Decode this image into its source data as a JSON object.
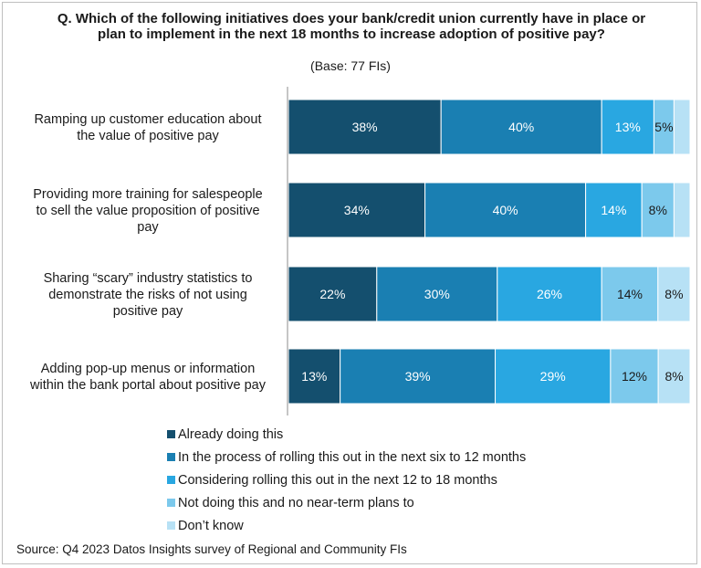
{
  "chart_data": {
    "type": "bar",
    "orientation": "horizontal",
    "stacked": true,
    "title": "Q. Which of the following initiatives does your bank/credit union currently have in place or plan to implement in the next 18 months to increase adoption of positive pay?",
    "subtitle": "(Base: 77 FIs)",
    "categories": [
      "Ramping up customer education about the value of positive pay",
      "Providing more training for salespeople to sell the value proposition of positive pay",
      "Sharing “scary” industry statistics to demonstrate the risks of not using positive pay",
      "Adding pop-up menus or information within the bank portal about positive pay"
    ],
    "series": [
      {
        "name": "Already doing this",
        "color": "#144f6e",
        "values": [
          38,
          34,
          22,
          13
        ],
        "labels": [
          "38%",
          "34%",
          "22%",
          "13%"
        ]
      },
      {
        "name": "In the process of rolling this out in the next six to 12 months",
        "color": "#1a7fb2",
        "values": [
          40,
          40,
          30,
          39
        ],
        "labels": [
          "40%",
          "40%",
          "30%",
          "39%"
        ]
      },
      {
        "name": "Considering rolling this out in the next 12 to 18 months",
        "color": "#29a7e1",
        "values": [
          13,
          14,
          26,
          29
        ],
        "labels": [
          "13%",
          "14%",
          "26%",
          "29%"
        ]
      },
      {
        "name": "Not doing this and no near-term plans to",
        "color": "#7cc9ec",
        "values": [
          5,
          8,
          14,
          12
        ],
        "labels": [
          "5%",
          "8%",
          "14%",
          "12%"
        ]
      },
      {
        "name": "Don’t know",
        "color": "#b7e1f5",
        "values": [
          4,
          4,
          8,
          8
        ],
        "labels": [
          "",
          "",
          "8%",
          "8%"
        ]
      }
    ],
    "xlim": [
      0,
      100
    ],
    "legend_position": "bottom",
    "grid": false
  },
  "source": "Source: Q4 2023 Datos Insights survey of Regional and Community FIs"
}
